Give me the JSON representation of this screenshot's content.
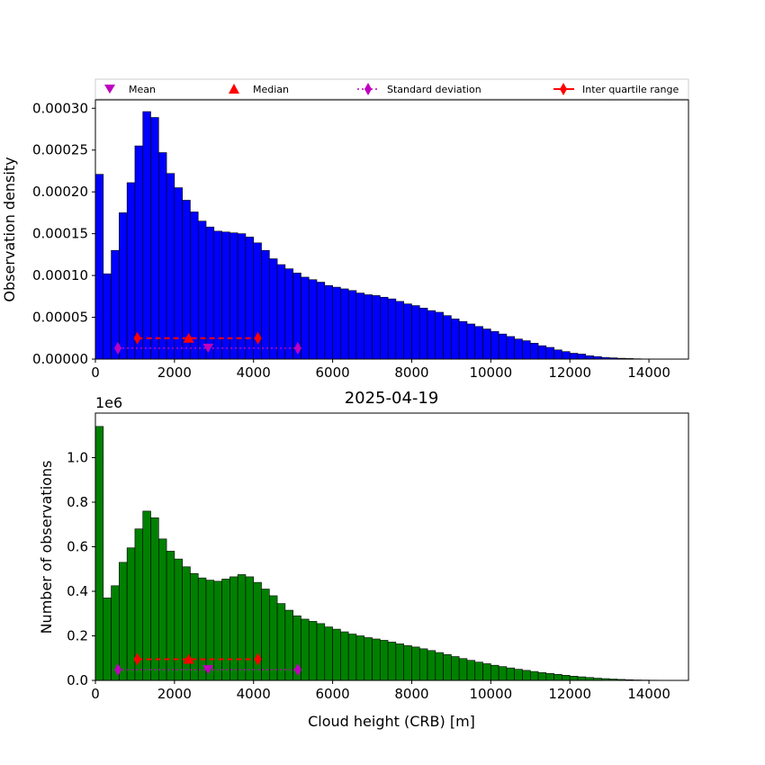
{
  "legend": {
    "mean": "Mean",
    "median": "Median",
    "std": "Standard deviation",
    "iqr": "Inter quartile range"
  },
  "colors": {
    "top_bars": "#0000ff",
    "bottom_bars": "#008000",
    "mean_marker": "#bf00bf",
    "iqr_marker": "#ff0000"
  },
  "chart_data": [
    {
      "type": "bar",
      "title": "",
      "xlabel": "",
      "ylabel": "Observation density",
      "xlim": [
        0,
        15000
      ],
      "ylim": [
        0,
        0.00031
      ],
      "bin_width": 200,
      "x_ticks": [
        "0",
        "2000",
        "4000",
        "6000",
        "8000",
        "10000",
        "12000",
        "14000"
      ],
      "y_ticks": [
        "0.00000",
        "0.00005",
        "0.00010",
        "0.00015",
        "0.00020",
        "0.00025",
        "0.00030"
      ],
      "values": [
        0.000221,
        0.000102,
        0.00013,
        0.000175,
        0.000211,
        0.000255,
        0.000296,
        0.000289,
        0.000247,
        0.000222,
        0.000205,
        0.00019,
        0.000176,
        0.000165,
        0.000158,
        0.000153,
        0.000152,
        0.000151,
        0.00015,
        0.000146,
        0.000139,
        0.00013,
        0.00012,
        0.000113,
        0.000108,
        0.000103,
        9.8e-05,
        9.5e-05,
        9.2e-05,
        8.8e-05,
        8.6e-05,
        8.4e-05,
        8.2e-05,
        7.9e-05,
        7.7e-05,
        7.6e-05,
        7.4e-05,
        7.2e-05,
        6.9e-05,
        6.6e-05,
        6.4e-05,
        6.1e-05,
        5.8e-05,
        5.6e-05,
        5.2e-05,
        4.8e-05,
        4.5e-05,
        4.2e-05,
        3.9e-05,
        3.6e-05,
        3.3e-05,
        3e-05,
        2.7e-05,
        2.4e-05,
        2.2e-05,
        1.9e-05,
        1.6e-05,
        1.4e-05,
        1.1e-05,
        9e-06,
        7e-06,
        6e-06,
        4e-06,
        3e-06,
        2e-06,
        1.5e-06,
        1e-06,
        7e-07,
        4e-07,
        2e-07,
        1e-07,
        0,
        0,
        0,
        0
      ],
      "stats": {
        "mean": 2850,
        "median": 2360,
        "std_range": [
          570,
          5120
        ],
        "iqr_range": [
          1060,
          4110
        ],
        "iqr_y": 2.5e-05,
        "mean_y": 1.3e-05
      }
    },
    {
      "type": "bar",
      "title": "2025-04-19",
      "xlabel": "Cloud height (CRB) [m]",
      "ylabel": "Number of observations",
      "xlim": [
        0,
        15000
      ],
      "ylim": [
        0,
        1200000
      ],
      "bin_width": 200,
      "y_offset_label": "1e6",
      "x_ticks": [
        "0",
        "2000",
        "4000",
        "6000",
        "8000",
        "10000",
        "12000",
        "14000"
      ],
      "y_ticks": [
        "0.0",
        "0.2",
        "0.4",
        "0.6",
        "0.8",
        "1.0"
      ],
      "values": [
        1140000,
        370000,
        425000,
        530000,
        595000,
        680000,
        760000,
        730000,
        635000,
        580000,
        545000,
        510000,
        480000,
        460000,
        450000,
        445000,
        455000,
        465000,
        475000,
        465000,
        440000,
        410000,
        380000,
        345000,
        315000,
        290000,
        275000,
        265000,
        255000,
        240000,
        230000,
        218000,
        208000,
        200000,
        192000,
        186000,
        180000,
        172000,
        164000,
        156000,
        150000,
        142000,
        134000,
        125000,
        116000,
        107000,
        98000,
        90000,
        82000,
        75000,
        68000,
        62000,
        56000,
        50000,
        45000,
        40000,
        35000,
        31000,
        27000,
        23000,
        19000,
        16000,
        13000,
        10000,
        8000,
        6000,
        4500,
        3000,
        2000,
        1500,
        1000,
        700,
        400,
        200,
        100
      ],
      "stats": {
        "mean": 2850,
        "median": 2360,
        "std_range": [
          570,
          5120
        ],
        "iqr_range": [
          1060,
          4110
        ],
        "iqr_y": 95000,
        "mean_y": 48000
      }
    }
  ]
}
